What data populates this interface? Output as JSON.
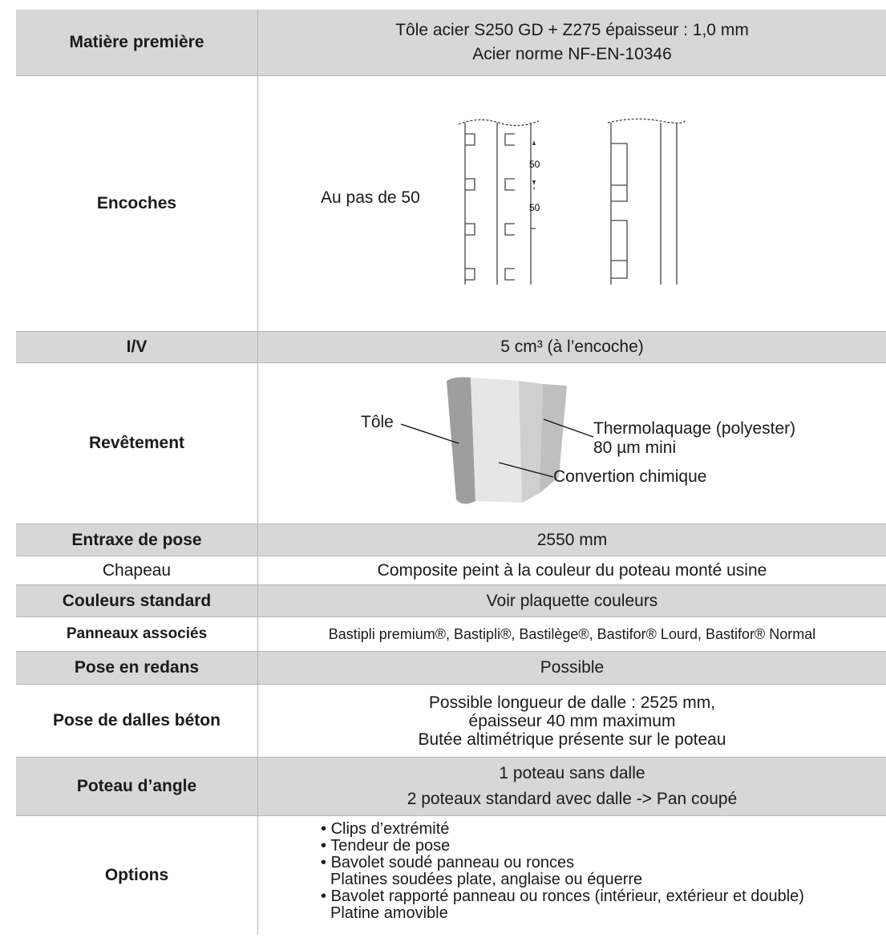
{
  "rows": {
    "matiere": {
      "label": "Matière première",
      "lines": [
        "Tôle acier S250 GD + Z275 épaisseur : 1,0 mm",
        "Acier norme NF-EN-10346"
      ]
    },
    "encoches": {
      "label": "Encoches",
      "text": "Au pas de 50",
      "dim1": "50",
      "dim2": "50"
    },
    "iv": {
      "label": "I/V",
      "value": "5 cm³ (à l’encoche)"
    },
    "revetement": {
      "label": "Revêtement",
      "tole": "Tôle",
      "thermo1": "Thermolaquage (polyester)",
      "thermo2": "80 µm mini",
      "conversion": "Convertion chimique"
    },
    "entraxe": {
      "label": "Entraxe de pose",
      "value": "2550 mm"
    },
    "chapeau": {
      "label": "Chapeau",
      "value": "Composite peint à la couleur du poteau monté usine"
    },
    "couleurs": {
      "label": "Couleurs standard",
      "value": "Voir plaquette couleurs"
    },
    "panneaux": {
      "label": "Panneaux associés",
      "value": "Bastipli premium®, Bastipli®, Bastilège®, Bastifor® Lourd, Bastifor® Normal"
    },
    "redans": {
      "label": "Pose en redans",
      "value": "Possible"
    },
    "dalles": {
      "label": "Pose de dalles béton",
      "lines": [
        "Possible longueur de dalle : 2525 mm,",
        "épaisseur 40 mm maximum",
        "Butée altimétrique présente sur le poteau"
      ]
    },
    "angle": {
      "label": "Poteau d’angle",
      "lines": [
        "1 poteau sans dalle",
        "2 poteaux standard avec dalle -> Pan coupé"
      ]
    },
    "options": {
      "label": "Options",
      "items": [
        "Clips d’extrémité",
        "Tendeur de pose",
        "Bavolet soudé panneau ou ronces",
        "Platines soudées plate, anglaise ou équerre",
        "Bavolet rapporté panneau ou ronces (intérieur, extérieur et double)",
        "Platine amovible"
      ]
    }
  },
  "colors": {
    "header_grey": "#d7d7d7",
    "rule": "#b5b5b5"
  }
}
